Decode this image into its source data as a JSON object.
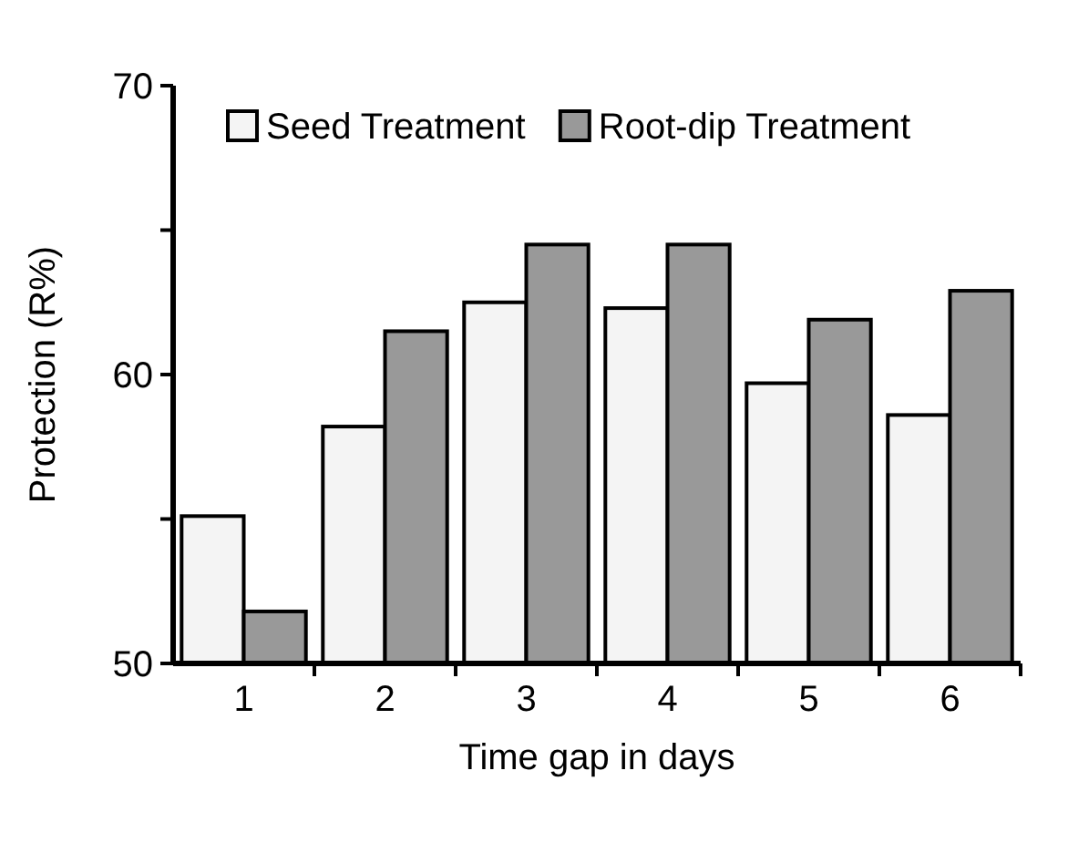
{
  "chart_data": {
    "type": "bar",
    "xlabel": "Time gap in days",
    "ylabel": "Protection (R%)",
    "categories": [
      "1",
      "2",
      "3",
      "4",
      "5",
      "6"
    ],
    "series": [
      {
        "name": "Seed Treatment",
        "color": "#f4f4f4",
        "values": [
          55.1,
          58.2,
          62.5,
          62.3,
          59.7,
          58.6
        ]
      },
      {
        "name": "Root-dip Treatment",
        "color": "#999999",
        "values": [
          51.8,
          61.5,
          64.5,
          64.5,
          61.9,
          62.9
        ]
      }
    ],
    "ylim": [
      50,
      70
    ],
    "yticks": [
      50,
      {
        "value": 55,
        "label": null
      },
      60,
      {
        "value": 65,
        "label": null
      },
      70
    ],
    "grid": false,
    "legend": "top"
  }
}
